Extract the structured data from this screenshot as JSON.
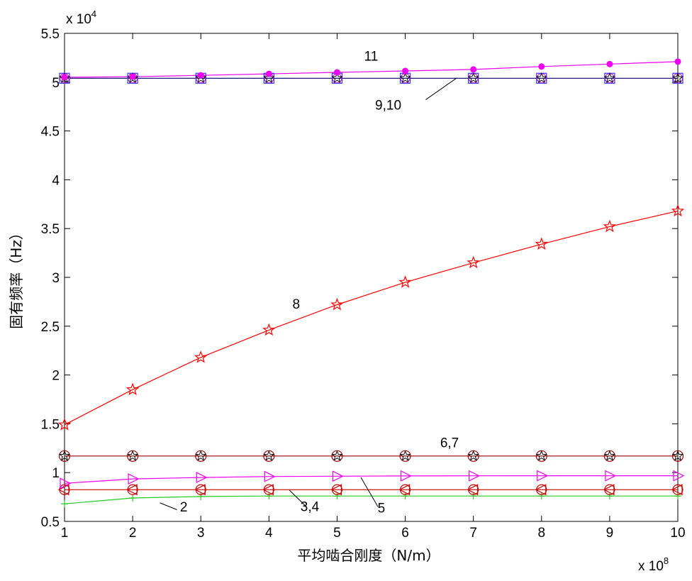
{
  "chart_data": {
    "type": "line",
    "xlabel": "平均啮合刚度（N/m）",
    "ylabel": "固有频率（Hz）",
    "x_multiplier": "x 10",
    "x_exponent": "8",
    "y_multiplier": "x 10",
    "y_exponent": "4",
    "xlim": [
      1,
      10
    ],
    "ylim": [
      0.5,
      5.5
    ],
    "x": [
      1,
      2,
      3,
      4,
      5,
      6,
      7,
      8,
      9,
      10
    ],
    "xticks": [
      "1",
      "2",
      "3",
      "4",
      "5",
      "6",
      "7",
      "8",
      "9",
      "10"
    ],
    "yticks": [
      "0.5",
      "1",
      "1.5",
      "2",
      "2.5",
      "3",
      "3.5",
      "4",
      "4.5",
      "5",
      "5.5"
    ],
    "grid": false,
    "series": [
      {
        "id": "2",
        "color": "#22cc22",
        "marker": "plus",
        "values": [
          0.68,
          0.74,
          0.755,
          0.76,
          0.76,
          0.76,
          0.76,
          0.76,
          0.76,
          0.76
        ]
      },
      {
        "id": "3,4",
        "color": "#cc0000",
        "marker": "circle-leftTriangle",
        "values": [
          0.825,
          0.825,
          0.825,
          0.825,
          0.825,
          0.825,
          0.825,
          0.825,
          0.825,
          0.825
        ]
      },
      {
        "id": "5",
        "color": "#ee00ee",
        "marker": "rightTriangle",
        "values": [
          0.89,
          0.935,
          0.95,
          0.96,
          0.963,
          0.966,
          0.967,
          0.968,
          0.968,
          0.968
        ]
      },
      {
        "id": "6,7",
        "color": "#990000",
        "marker": "circle-star",
        "values": [
          1.17,
          1.17,
          1.17,
          1.17,
          1.17,
          1.17,
          1.17,
          1.17,
          1.17,
          1.17
        ]
      },
      {
        "id": "8",
        "color": "#ff0000",
        "marker": "star",
        "values": [
          1.49,
          1.85,
          2.18,
          2.46,
          2.72,
          2.95,
          3.15,
          3.34,
          3.52,
          3.68
        ]
      },
      {
        "id": "9,10",
        "color": "#000066",
        "marker": "square-star",
        "values": [
          5.04,
          5.04,
          5.04,
          5.04,
          5.04,
          5.04,
          5.04,
          5.04,
          5.04,
          5.04
        ]
      },
      {
        "id": "11",
        "color": "#ee00ee",
        "marker": "dot",
        "values": [
          5.05,
          5.055,
          5.07,
          5.085,
          5.1,
          5.115,
          5.13,
          5.16,
          5.185,
          5.21
        ]
      }
    ],
    "annotations": [
      {
        "text": "11",
        "at": [
          5.5,
          5.22
        ],
        "leader": null
      },
      {
        "text": "9,10",
        "at": [
          5.75,
          4.72
        ],
        "leader": [
          [
            6.3,
            4.82
          ],
          [
            6.75,
            5.04
          ]
        ]
      },
      {
        "text": "8",
        "at": [
          4.4,
          2.68
        ],
        "leader": null
      },
      {
        "text": "6,7",
        "at": [
          6.65,
          1.26
        ],
        "leader": null
      },
      {
        "text": "2",
        "at": [
          2.75,
          0.6
        ],
        "leader": [
          [
            2.65,
            0.62
          ],
          [
            2.4,
            0.69
          ]
        ]
      },
      {
        "text": "3,4",
        "at": [
          4.6,
          0.605
        ],
        "leader": [
          [
            4.55,
            0.65
          ],
          [
            4.3,
            0.82
          ]
        ]
      },
      {
        "text": "5",
        "at": [
          5.65,
          0.59
        ],
        "leader": [
          [
            5.6,
            0.65
          ],
          [
            5.35,
            0.95
          ]
        ]
      }
    ]
  }
}
